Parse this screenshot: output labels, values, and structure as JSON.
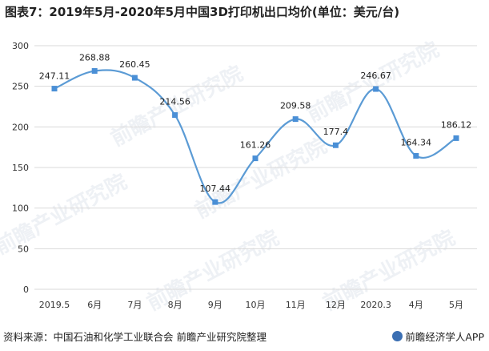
{
  "title": "图表7：2019年5月-2020年5月中国3D打印机出口均价(单位：美元/台)",
  "source": "资料来源：中国石油和化学工业联合会 前瞻产业研究院整理",
  "brand": "前瞻经济学人APP",
  "watermark": "前瞻产业研究院",
  "colors": {
    "line": "#5b9bd5",
    "marker": "#4a8fd6",
    "grid": "#d9d9d9"
  },
  "chart_data": {
    "type": "line",
    "categories": [
      "2019.5",
      "6月",
      "7月",
      "8月",
      "9月",
      "10月",
      "11月",
      "12月",
      "2020.3",
      "4月",
      "5月"
    ],
    "series": [
      {
        "values": [
          247.11,
          268.88,
          260.45,
          214.56,
          107.44,
          161.26,
          209.58,
          177.4,
          246.67,
          164.34,
          186.12
        ]
      }
    ],
    "data_labels": [
      "247.11",
      "268.88",
      "260.45",
      "214.56",
      "107.44",
      "161.26",
      "209.58",
      "177.4",
      "246.67",
      "164.34",
      "186.12"
    ],
    "ylim": [
      0,
      300
    ],
    "yticks": [
      0,
      50,
      100,
      150,
      200,
      250,
      300
    ],
    "grid": true,
    "legend": "none"
  }
}
